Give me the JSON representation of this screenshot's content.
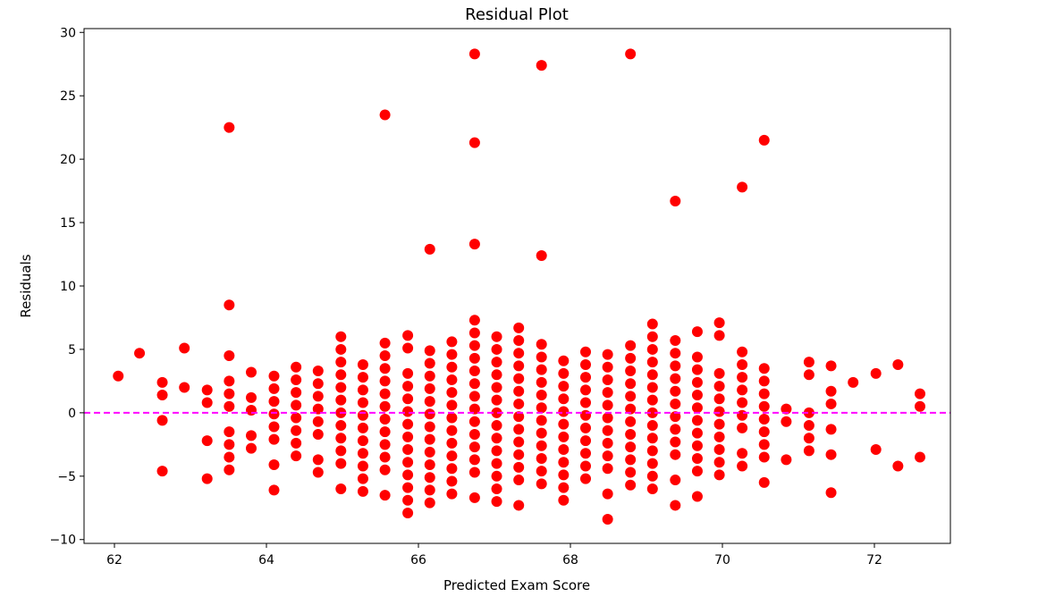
{
  "chart_data": {
    "type": "scatter",
    "title": "Residual Plot",
    "xlabel": "Predicted Exam Score",
    "ylabel": "Residuals",
    "xlim": [
      61.6,
      73.0
    ],
    "ylim": [
      -10.3,
      30.3
    ],
    "xticks": [
      62,
      64,
      66,
      68,
      70,
      72
    ],
    "yticks": [
      -10,
      -5,
      0,
      5,
      10,
      15,
      20,
      25,
      30
    ],
    "reference_line": {
      "y": 0,
      "style": "dashed",
      "color": "#ff00ff"
    },
    "grid": false,
    "marker_color": "#ff0000",
    "columns": [
      {
        "x": 62.05,
        "y": [
          2.9
        ]
      },
      {
        "x": 62.33,
        "y": [
          4.7
        ]
      },
      {
        "x": 62.63,
        "y": [
          2.4,
          1.4,
          -0.6,
          -4.6
        ]
      },
      {
        "x": 62.92,
        "y": [
          5.1,
          2.0
        ]
      },
      {
        "x": 63.22,
        "y": [
          1.8,
          0.8,
          -2.2,
          -5.2
        ]
      },
      {
        "x": 63.51,
        "y": [
          22.5,
          8.5,
          4.5,
          2.5,
          1.5,
          0.5,
          -1.5,
          -2.5,
          -3.5,
          -4.5
        ]
      },
      {
        "x": 63.8,
        "y": [
          3.2,
          1.2,
          0.2,
          -1.8,
          -2.8
        ]
      },
      {
        "x": 64.1,
        "y": [
          2.9,
          1.9,
          0.9,
          -0.1,
          -1.1,
          -2.1,
          -4.1,
          -6.1
        ]
      },
      {
        "x": 64.39,
        "y": [
          3.6,
          2.6,
          1.6,
          0.6,
          -0.4,
          -1.4,
          -2.4,
          -3.4
        ]
      },
      {
        "x": 64.68,
        "y": [
          3.3,
          2.3,
          1.3,
          0.3,
          -0.7,
          -1.7,
          -3.7,
          -4.7
        ]
      },
      {
        "x": 64.98,
        "y": [
          6.0,
          5.0,
          4.0,
          3.0,
          2.0,
          1.0,
          0.0,
          -1.0,
          -2.0,
          -3.0,
          -4.0,
          -6.0
        ]
      },
      {
        "x": 65.27,
        "y": [
          3.8,
          2.8,
          1.8,
          0.8,
          -0.2,
          -1.2,
          -2.2,
          -3.2,
          -4.2,
          -5.2,
          -6.2
        ]
      },
      {
        "x": 65.56,
        "y": [
          23.5,
          5.5,
          4.5,
          3.5,
          2.5,
          1.5,
          0.5,
          -0.5,
          -1.5,
          -2.5,
          -3.5,
          -4.5,
          -6.5
        ]
      },
      {
        "x": 65.86,
        "y": [
          6.1,
          5.1,
          3.1,
          2.1,
          1.1,
          0.1,
          -0.9,
          -1.9,
          -2.9,
          -3.9,
          -4.9,
          -5.9,
          -6.9,
          -7.9
        ]
      },
      {
        "x": 66.15,
        "y": [
          12.9,
          4.9,
          3.9,
          2.9,
          1.9,
          0.9,
          -0.1,
          -1.1,
          -2.1,
          -3.1,
          -4.1,
          -5.1,
          -6.1,
          -7.1
        ]
      },
      {
        "x": 66.44,
        "y": [
          5.6,
          4.6,
          3.6,
          2.6,
          1.6,
          0.6,
          -0.4,
          -1.4,
          -2.4,
          -3.4,
          -4.4,
          -5.4,
          -6.4
        ]
      },
      {
        "x": 66.74,
        "y": [
          28.3,
          21.3,
          13.3,
          7.3,
          6.3,
          5.3,
          4.3,
          3.3,
          2.3,
          1.3,
          0.3,
          -0.7,
          -1.7,
          -2.7,
          -3.7,
          -4.7,
          -6.7
        ]
      },
      {
        "x": 67.03,
        "y": [
          6.0,
          5.0,
          4.0,
          3.0,
          2.0,
          1.0,
          0.0,
          -1.0,
          -2.0,
          -3.0,
          -4.0,
          -5.0,
          -6.0,
          -7.0
        ]
      },
      {
        "x": 67.32,
        "y": [
          6.7,
          5.7,
          4.7,
          3.7,
          2.7,
          1.7,
          0.7,
          -0.3,
          -1.3,
          -2.3,
          -3.3,
          -4.3,
          -5.3,
          -7.3
        ]
      },
      {
        "x": 67.62,
        "y": [
          27.4,
          12.4,
          5.4,
          4.4,
          3.4,
          2.4,
          1.4,
          0.4,
          -0.6,
          -1.6,
          -2.6,
          -3.6,
          -4.6,
          -5.6
        ]
      },
      {
        "x": 67.91,
        "y": [
          4.1,
          3.1,
          2.1,
          1.1,
          0.1,
          -0.9,
          -1.9,
          -2.9,
          -3.9,
          -4.9,
          -5.9,
          -6.9
        ]
      },
      {
        "x": 68.2,
        "y": [
          4.8,
          3.8,
          2.8,
          1.8,
          0.8,
          -0.2,
          -1.2,
          -2.2,
          -3.2,
          -4.2,
          -5.2
        ]
      },
      {
        "x": 68.49,
        "y": [
          4.6,
          3.6,
          2.6,
          1.6,
          0.6,
          -0.4,
          -1.4,
          -2.4,
          -3.4,
          -4.4,
          -6.4,
          -8.4
        ]
      },
      {
        "x": 68.79,
        "y": [
          28.3,
          5.3,
          4.3,
          3.3,
          2.3,
          1.3,
          0.3,
          -0.7,
          -1.7,
          -2.7,
          -3.7,
          -4.7,
          -5.7
        ]
      },
      {
        "x": 69.08,
        "y": [
          7.0,
          6.0,
          5.0,
          4.0,
          3.0,
          2.0,
          1.0,
          0.0,
          -1.0,
          -2.0,
          -3.0,
          -4.0,
          -5.0,
          -6.0
        ]
      },
      {
        "x": 69.38,
        "y": [
          16.7,
          5.7,
          4.7,
          3.7,
          2.7,
          1.7,
          0.7,
          -0.3,
          -1.3,
          -2.3,
          -3.3,
          -5.3,
          -7.3
        ]
      },
      {
        "x": 69.67,
        "y": [
          6.4,
          4.4,
          3.4,
          2.4,
          1.4,
          0.4,
          -0.6,
          -1.6,
          -2.6,
          -3.6,
          -4.6,
          -6.6
        ]
      },
      {
        "x": 69.96,
        "y": [
          7.1,
          6.1,
          3.1,
          2.1,
          1.1,
          0.1,
          -0.9,
          -1.9,
          -2.9,
          -3.9,
          -4.9
        ]
      },
      {
        "x": 70.26,
        "y": [
          17.8,
          4.8,
          3.8,
          2.8,
          1.8,
          0.8,
          -0.2,
          -1.2,
          -3.2,
          -4.2
        ]
      },
      {
        "x": 70.55,
        "y": [
          21.5,
          3.5,
          2.5,
          1.5,
          0.5,
          -0.5,
          -1.5,
          -2.5,
          -3.5,
          -5.5
        ]
      },
      {
        "x": 70.84,
        "y": [
          0.3,
          -0.7,
          -3.7
        ]
      },
      {
        "x": 71.14,
        "y": [
          4.0,
          3.0,
          0.0,
          -1.0,
          -2.0,
          -3.0
        ]
      },
      {
        "x": 71.43,
        "y": [
          3.7,
          1.7,
          0.7,
          -1.3,
          -3.3,
          -6.3
        ]
      },
      {
        "x": 71.72,
        "y": [
          2.4
        ]
      },
      {
        "x": 72.02,
        "y": [
          3.1,
          -2.9
        ]
      },
      {
        "x": 72.31,
        "y": [
          3.8,
          -4.2
        ]
      },
      {
        "x": 72.6,
        "y": [
          1.5,
          0.5,
          -3.5
        ]
      }
    ]
  }
}
